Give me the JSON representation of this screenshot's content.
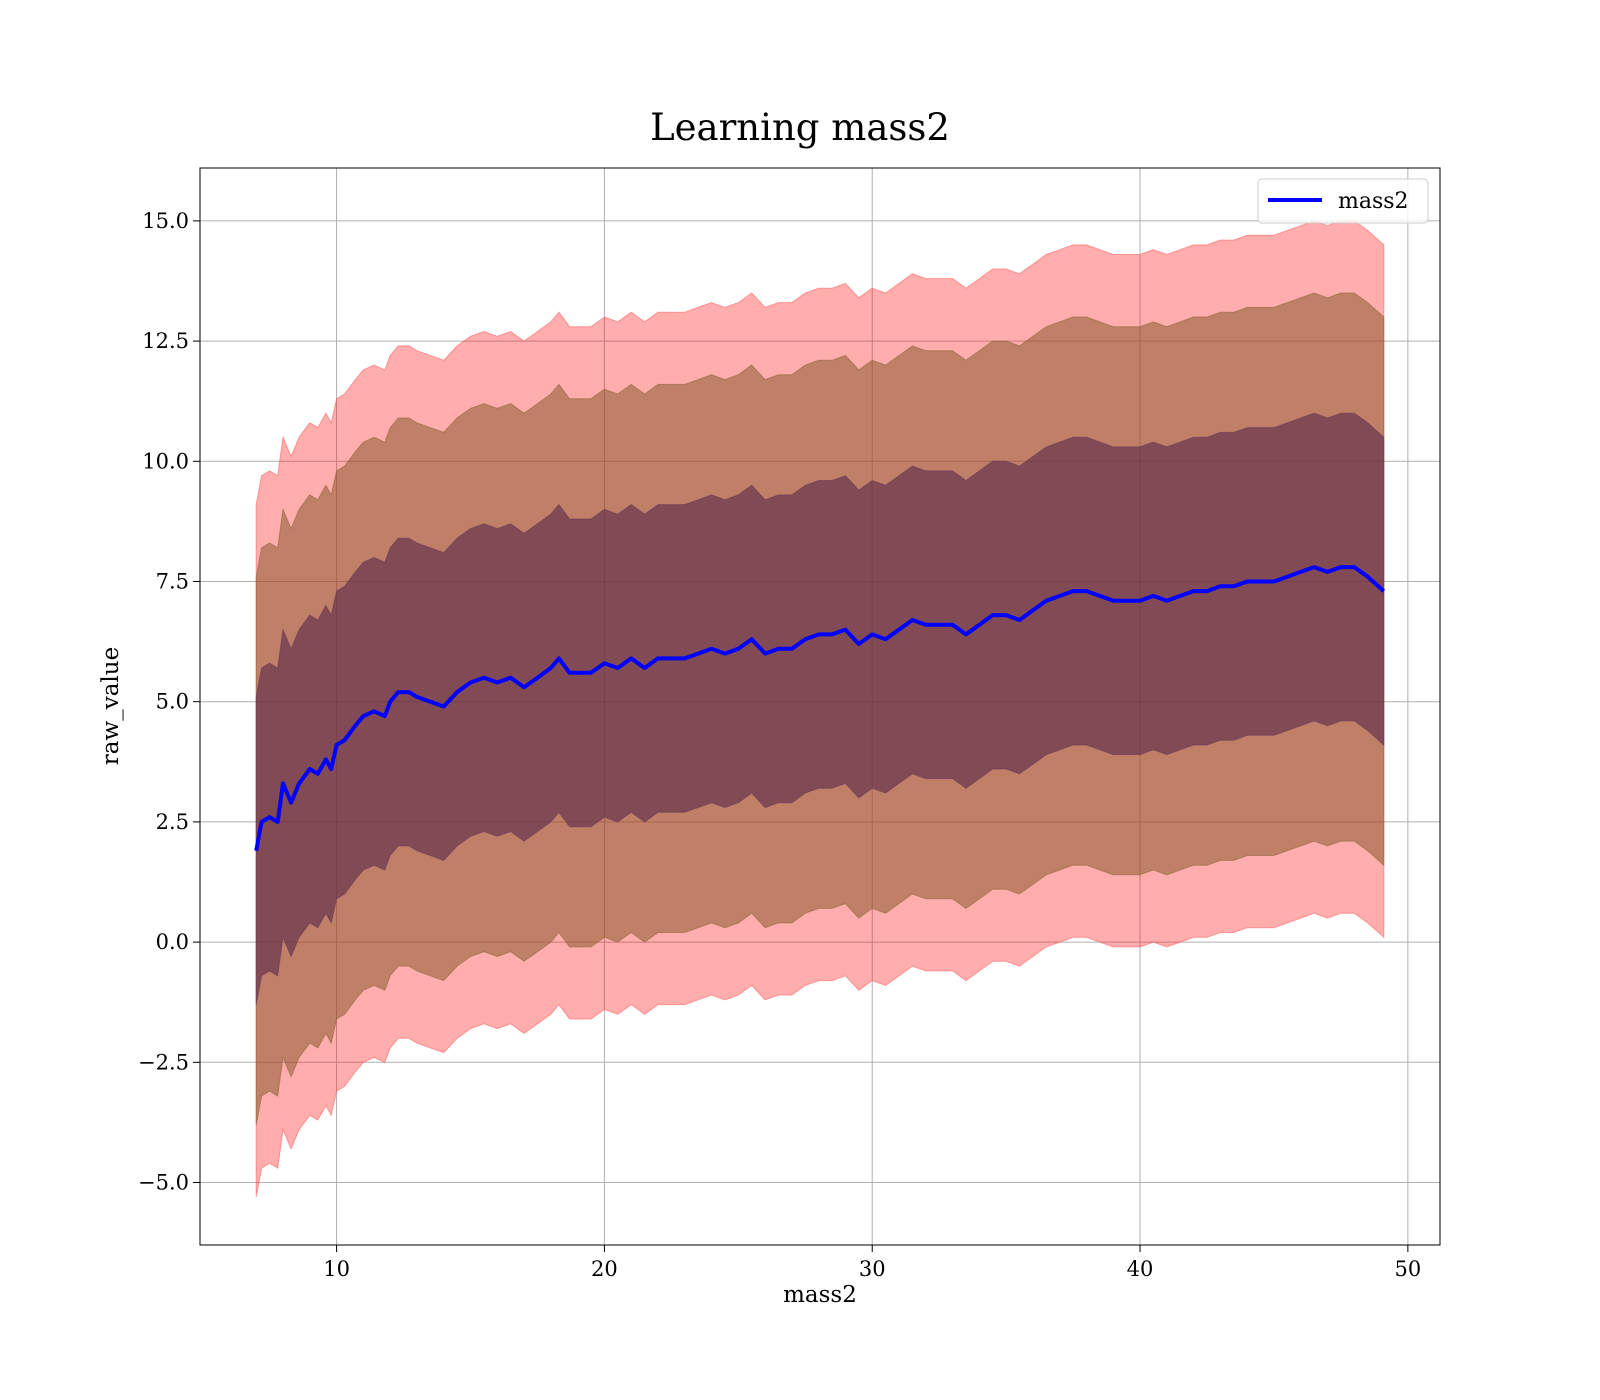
{
  "chart_data": {
    "type": "area",
    "title": "Learning mass2",
    "xlabel": "mass2",
    "ylabel": "raw_value",
    "xlim": [
      4.9,
      51.2
    ],
    "ylim": [
      -6.3,
      16.1
    ],
    "xticks": [
      10,
      20,
      30,
      40,
      50
    ],
    "xtick_labels": [
      "10",
      "20",
      "30",
      "40",
      "50"
    ],
    "yticks": [
      -5.0,
      -2.5,
      0.0,
      2.5,
      5.0,
      7.5,
      10.0,
      12.5,
      15.0
    ],
    "ytick_labels": [
      "−5.0",
      "−2.5",
      "0.0",
      "2.5",
      "5.0",
      "7.5",
      "10.0",
      "12.5",
      "15.0"
    ],
    "grid": true,
    "legend": {
      "position": "top-right",
      "entries": [
        "mass2"
      ]
    },
    "colors": {
      "mean_line": "#0000ff",
      "band_outer": "#ff0000",
      "band_middle": "#8c5a2e",
      "band_inner": "#5a2a4a"
    },
    "series": [
      {
        "name": "mass2",
        "x": [
          7.0,
          7.2,
          7.5,
          7.8,
          8.0,
          8.3,
          8.6,
          9.0,
          9.3,
          9.6,
          9.8,
          10.0,
          10.3,
          10.7,
          11.0,
          11.4,
          11.8,
          12.0,
          12.3,
          12.7,
          13.0,
          13.5,
          14.0,
          14.5,
          15.0,
          15.5,
          16.0,
          16.5,
          17.0,
          17.5,
          18.0,
          18.3,
          18.7,
          19.0,
          19.5,
          20.0,
          20.5,
          21.0,
          21.5,
          22.0,
          22.5,
          23.0,
          23.5,
          24.0,
          24.5,
          25.0,
          25.5,
          26.0,
          26.5,
          27.0,
          27.5,
          28.0,
          28.5,
          29.0,
          29.5,
          30.0,
          30.5,
          31.0,
          31.5,
          32.0,
          32.5,
          33.0,
          33.5,
          34.0,
          34.5,
          35.0,
          35.5,
          36.0,
          36.5,
          37.0,
          37.5,
          38.0,
          38.5,
          39.0,
          39.5,
          40.0,
          40.5,
          41.0,
          41.5,
          42.0,
          42.5,
          43.0,
          43.5,
          44.0,
          44.5,
          45.0,
          45.5,
          46.0,
          46.5,
          47.0,
          47.5,
          48.0,
          48.5,
          49.1
        ],
        "y": [
          1.9,
          2.5,
          2.6,
          2.5,
          3.3,
          2.9,
          3.3,
          3.6,
          3.5,
          3.8,
          3.6,
          4.1,
          4.2,
          4.5,
          4.7,
          4.8,
          4.7,
          5.0,
          5.2,
          5.2,
          5.1,
          5.0,
          4.9,
          5.2,
          5.4,
          5.5,
          5.4,
          5.5,
          5.3,
          5.5,
          5.7,
          5.9,
          5.6,
          5.6,
          5.6,
          5.8,
          5.7,
          5.9,
          5.7,
          5.9,
          5.9,
          5.9,
          6.0,
          6.1,
          6.0,
          6.1,
          6.3,
          6.0,
          6.1,
          6.1,
          6.3,
          6.4,
          6.4,
          6.5,
          6.2,
          6.4,
          6.3,
          6.5,
          6.7,
          6.6,
          6.6,
          6.6,
          6.4,
          6.6,
          6.8,
          6.8,
          6.7,
          6.9,
          7.1,
          7.2,
          7.3,
          7.3,
          7.2,
          7.1,
          7.1,
          7.1,
          7.2,
          7.1,
          7.2,
          7.3,
          7.3,
          7.4,
          7.4,
          7.5,
          7.5,
          7.5,
          7.6,
          7.7,
          7.8,
          7.7,
          7.8,
          7.8,
          7.6,
          7.3
        ]
      }
    ],
    "bands": [
      {
        "level": "outer",
        "lower_offset": -7.2,
        "upper_offset": 7.2
      },
      {
        "level": "middle",
        "lower_offset": -5.7,
        "upper_offset": 5.7
      },
      {
        "level": "inner",
        "lower_offset": -3.2,
        "upper_offset": 3.2
      }
    ]
  }
}
